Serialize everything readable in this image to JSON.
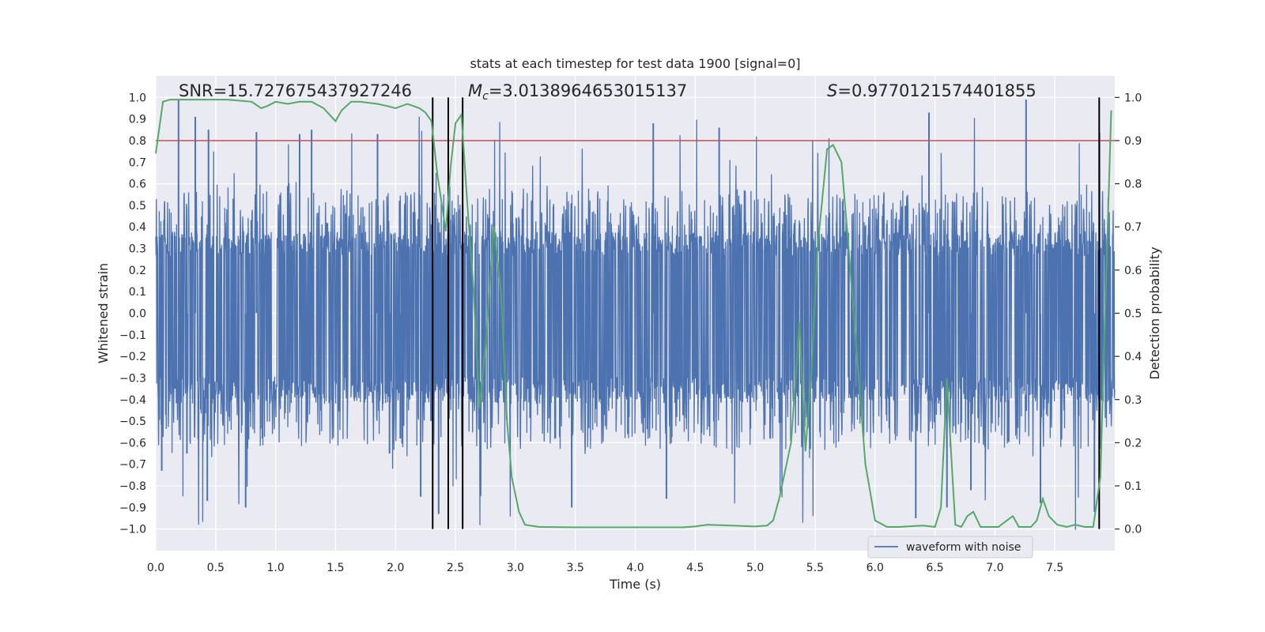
{
  "chart_data": {
    "type": "line",
    "title": "stats at each timestep for test data 1900 [signal=0]",
    "xlabel": "Time (s)",
    "ylabel": "Whitened strain",
    "y2label": "Detection probability",
    "xlim": [
      0.0,
      8.0
    ],
    "ylim": [
      -1.1,
      1.1
    ],
    "y2lim": [
      -0.05,
      1.05
    ],
    "xticks": [
      "0.0",
      "0.5",
      "1.0",
      "1.5",
      "2.0",
      "2.5",
      "3.0",
      "3.5",
      "4.0",
      "4.5",
      "5.0",
      "5.5",
      "6.0",
      "6.5",
      "7.0",
      "7.5"
    ],
    "yticks": [
      "1.0",
      "0.9",
      "0.8",
      "0.7",
      "0.6",
      "0.5",
      "0.4",
      "0.3",
      "0.2",
      "0.1",
      "0.0",
      "−0.1",
      "−0.2",
      "−0.3",
      "−0.4",
      "−0.5",
      "−0.6",
      "−0.7",
      "−0.8",
      "−0.9",
      "−1.0"
    ],
    "y2ticks": [
      "1.0",
      "0.9",
      "0.8",
      "0.7",
      "0.6",
      "0.5",
      "0.4",
      "0.3",
      "0.2",
      "0.1",
      "0.0"
    ],
    "annotations": {
      "snr": "SNR=15.727675437927246",
      "mc_prefix": "M",
      "mc_sub": "c",
      "mc_value": "=3.0138964653015137",
      "s_prefix": "S",
      "s_value": "=0.9770121574401855"
    },
    "threshold": {
      "value": 0.9,
      "axis": "y2",
      "color": "#c44e52"
    },
    "vlines": [
      2.31,
      2.44,
      2.56,
      7.87
    ],
    "series": [
      {
        "name": "waveform with noise",
        "axis": "y",
        "color": "#4c72b0",
        "style": "noise",
        "envelope_upper": 0.38,
        "envelope_lower": -0.42,
        "peaks": [
          {
            "x": 0.05,
            "y": -0.73
          },
          {
            "x": 0.19,
            "y": 0.99
          },
          {
            "x": 0.26,
            "y": -0.65
          },
          {
            "x": 0.33,
            "y": 0.91
          },
          {
            "x": 0.43,
            "y": -0.87
          },
          {
            "x": 0.44,
            "y": 0.85
          },
          {
            "x": 0.75,
            "y": -0.9
          },
          {
            "x": 0.84,
            "y": 0.84
          },
          {
            "x": 1.2,
            "y": 0.83
          },
          {
            "x": 1.3,
            "y": 0.85
          },
          {
            "x": 1.85,
            "y": 0.83
          },
          {
            "x": 1.95,
            "y": -0.65
          },
          {
            "x": 2.04,
            "y": -0.58
          },
          {
            "x": 2.21,
            "y": -0.85
          },
          {
            "x": 2.36,
            "y": -0.93
          },
          {
            "x": 3.47,
            "y": -0.9
          },
          {
            "x": 4.15,
            "y": 0.88
          },
          {
            "x": 4.26,
            "y": -0.86
          },
          {
            "x": 4.7,
            "y": 0.86
          },
          {
            "x": 6.34,
            "y": -0.95
          },
          {
            "x": 6.45,
            "y": 0.93
          },
          {
            "x": 6.6,
            "y": -0.9
          },
          {
            "x": 7.26,
            "y": 0.99
          },
          {
            "x": 7.38,
            "y": -0.88
          },
          {
            "x": 7.83,
            "y": -0.92
          },
          {
            "x": 6.8,
            "y": -0.82
          }
        ]
      },
      {
        "name": "detection probability",
        "axis": "y2",
        "color": "#55a868",
        "style": "line",
        "x": [
          0.0,
          0.06,
          0.12,
          0.17,
          0.25,
          0.4,
          0.6,
          0.8,
          0.88,
          0.93,
          1.0,
          1.1,
          1.2,
          1.3,
          1.4,
          1.45,
          1.5,
          1.55,
          1.63,
          1.7,
          1.85,
          1.93,
          2.0,
          2.05,
          2.1,
          2.15,
          2.2,
          2.25,
          2.3,
          2.35,
          2.42,
          2.46,
          2.5,
          2.55,
          2.6,
          2.65,
          2.7,
          2.75,
          2.82,
          2.88,
          2.93,
          2.97,
          3.03,
          3.08,
          3.2,
          3.5,
          4.0,
          4.4,
          4.5,
          4.6,
          4.8,
          5.0,
          5.1,
          5.15,
          5.2,
          5.3,
          5.37,
          5.42,
          5.47,
          5.52,
          5.6,
          5.65,
          5.72,
          5.78,
          5.85,
          5.92,
          6.0,
          6.1,
          6.2,
          6.4,
          6.5,
          6.55,
          6.6,
          6.64,
          6.67,
          6.72,
          6.77,
          6.82,
          6.88,
          6.95,
          7.03,
          7.1,
          7.15,
          7.2,
          7.25,
          7.3,
          7.35,
          7.4,
          7.45,
          7.52,
          7.6,
          7.67,
          7.75,
          7.82,
          7.88,
          7.93,
          7.97
        ],
        "y": [
          0.87,
          0.99,
          0.995,
          0.995,
          0.995,
          0.995,
          0.995,
          0.99,
          0.975,
          0.98,
          0.99,
          0.985,
          0.99,
          0.99,
          0.975,
          0.96,
          0.945,
          0.97,
          0.99,
          0.99,
          0.985,
          0.98,
          0.975,
          0.98,
          0.985,
          0.98,
          0.975,
          0.965,
          0.945,
          0.82,
          0.69,
          0.84,
          0.94,
          0.96,
          0.75,
          0.56,
          0.28,
          0.42,
          0.7,
          0.55,
          0.25,
          0.12,
          0.04,
          0.01,
          0.005,
          0.004,
          0.004,
          0.004,
          0.006,
          0.01,
          0.008,
          0.006,
          0.008,
          0.02,
          0.07,
          0.2,
          0.48,
          0.18,
          0.37,
          0.65,
          0.88,
          0.89,
          0.85,
          0.65,
          0.4,
          0.15,
          0.02,
          0.005,
          0.005,
          0.008,
          0.005,
          0.05,
          0.35,
          0.15,
          0.01,
          0.005,
          0.03,
          0.04,
          0.005,
          0.005,
          0.005,
          0.02,
          0.03,
          0.005,
          0.005,
          0.005,
          0.02,
          0.07,
          0.03,
          0.01,
          0.005,
          0.01,
          0.005,
          0.005,
          0.12,
          0.6,
          0.97
        ]
      }
    ],
    "legend": {
      "placement": "bottom-right",
      "label": "waveform with noise"
    }
  }
}
